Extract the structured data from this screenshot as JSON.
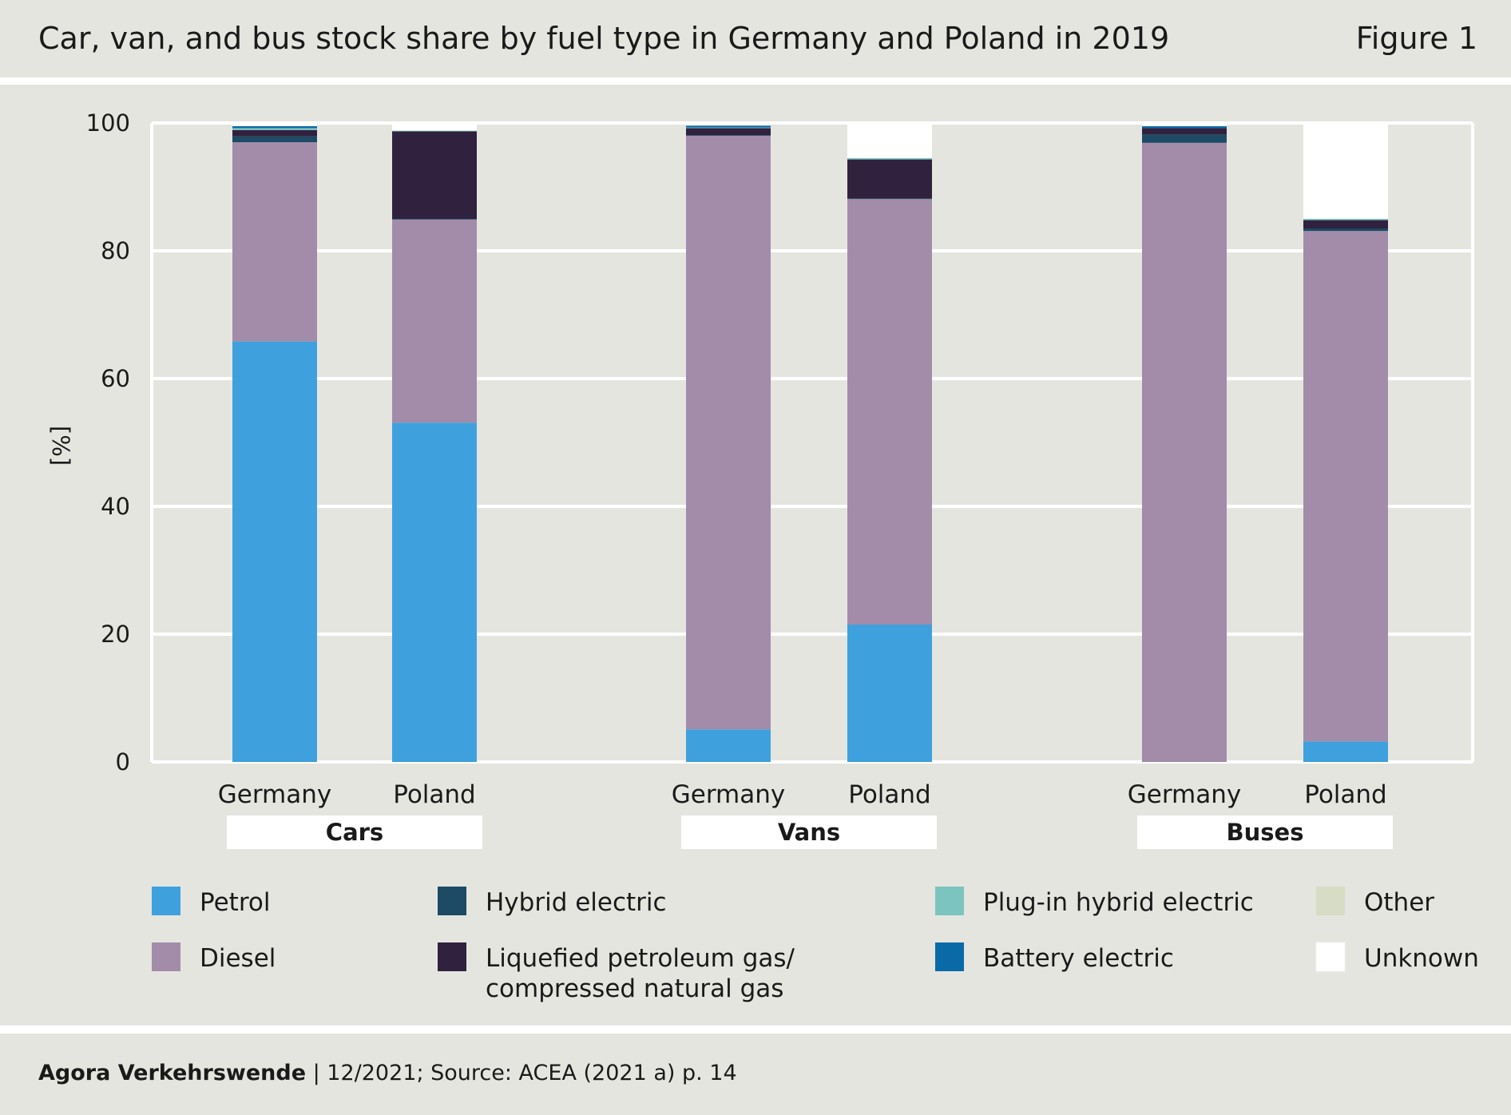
{
  "header": {
    "title": "Car, van, and bus stock share by fuel type in Germany and Poland in 2019",
    "figure_label": "Figure 1"
  },
  "footer": {
    "brand": "Agora Verkehrswende",
    "source": " | 12/2021; Source: ACEA (2021 a) p. 14"
  },
  "colors": {
    "background": "#e5e5e0",
    "grid": "#ffffff",
    "Petrol": "#3ea1dd",
    "Diesel": "#a28caa",
    "Hybrid electric": "#1d4a64",
    "Liquefied petroleum gas/compressed natural gas": "#30213f",
    "Plug-in hybrid electric": "#7cc4c0",
    "Battery electric": "#0a6aa8",
    "Other": "#d7dcc4",
    "Unknown": "#ffffff"
  },
  "chart_data": {
    "type": "bar",
    "stacked": true,
    "title": "Car, van, and bus stock share by fuel type in Germany and Poland in 2019",
    "ylabel": "[%]",
    "xlabel": "",
    "ylim": [
      0,
      100
    ],
    "yticks": [
      0,
      20,
      40,
      60,
      80,
      100
    ],
    "groups": [
      "Cars",
      "Vans",
      "Buses"
    ],
    "categories": [
      "Germany",
      "Poland",
      "Germany",
      "Poland",
      "Germany",
      "Poland"
    ],
    "category_groups": [
      "Cars",
      "Cars",
      "Vans",
      "Vans",
      "Buses",
      "Buses"
    ],
    "series": [
      {
        "name": "Petrol",
        "values": [
          65.8,
          53.1,
          5.1,
          21.5,
          0.0,
          3.2
        ]
      },
      {
        "name": "Diesel",
        "values": [
          31.2,
          31.8,
          92.9,
          66.6,
          96.9,
          79.9
        ]
      },
      {
        "name": "Hybrid electric",
        "values": [
          0.9,
          0.1,
          0.1,
          0.1,
          1.3,
          0.4
        ]
      },
      {
        "name": "Liquefied petroleum gas/compressed natural gas",
        "values": [
          1.0,
          13.7,
          1.1,
          6.1,
          1.0,
          1.3
        ]
      },
      {
        "name": "Plug-in hybrid electric",
        "values": [
          0.3,
          0.1,
          0.1,
          0.2,
          0.0,
          0.2
        ]
      },
      {
        "name": "Battery electric",
        "values": [
          0.3,
          0.0,
          0.3,
          0.0,
          0.3,
          0.0
        ]
      },
      {
        "name": "Other",
        "values": [
          0.0,
          0.0,
          0.0,
          0.0,
          0.0,
          0.0
        ]
      },
      {
        "name": "Unknown",
        "values": [
          0.5,
          1.2,
          0.4,
          5.5,
          0.5,
          15.0
        ]
      }
    ],
    "legend": [
      [
        "Petrol"
      ],
      [
        "Diesel"
      ],
      [
        "Hybrid electric"
      ],
      [
        "Liquefied petroleum gas/",
        "compressed natural gas"
      ],
      [
        "Plug-in hybrid electric"
      ],
      [
        "Battery electric"
      ],
      [
        "Other"
      ],
      [
        "Unknown"
      ]
    ],
    "legend_position": "bottom"
  }
}
